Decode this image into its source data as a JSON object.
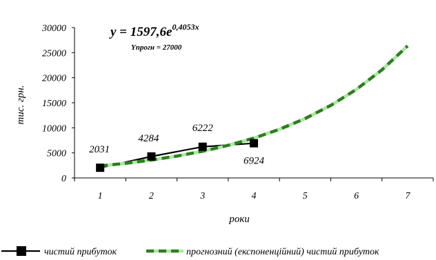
{
  "chart_data": {
    "type": "line",
    "xlabel": "роки",
    "ylabel": "тис. грн.",
    "x_ticks": [
      "1",
      "2",
      "3",
      "4",
      "5",
      "6",
      "7"
    ],
    "y_ticks": [
      "0",
      "5000",
      "10000",
      "15000",
      "20000",
      "25000",
      "30000"
    ],
    "xlim": [
      0.5,
      7.5
    ],
    "ylim": [
      0,
      30000
    ],
    "grid": false,
    "legend_position": "bottom",
    "annotations": {
      "equation": "y = 1597,6e",
      "exponent": "0,4053x",
      "forecast_label": "Yпрогн = 27000"
    },
    "series": [
      {
        "name": "чистий прибуток",
        "color": "#000000",
        "style": "solid",
        "marker": "square",
        "x": [
          1,
          2,
          3,
          4
        ],
        "y": [
          2031,
          4284,
          6222,
          6924
        ],
        "labels": [
          "2031",
          "4284",
          "6222",
          "6924"
        ]
      },
      {
        "name": "прогнозний (експоненційний) чистий прибуток",
        "color": "#2e7d1e",
        "dash_color": "#a8e8a0",
        "style": "dashed",
        "x": [
          1,
          1.5,
          2,
          2.5,
          3,
          3.5,
          4,
          4.5,
          5,
          5.5,
          6,
          6.5,
          7
        ],
        "y": [
          2396,
          2926,
          3573,
          4363,
          5328,
          6506,
          7945,
          9702,
          11848,
          14469,
          17668,
          21574,
          26344
        ]
      }
    ]
  }
}
